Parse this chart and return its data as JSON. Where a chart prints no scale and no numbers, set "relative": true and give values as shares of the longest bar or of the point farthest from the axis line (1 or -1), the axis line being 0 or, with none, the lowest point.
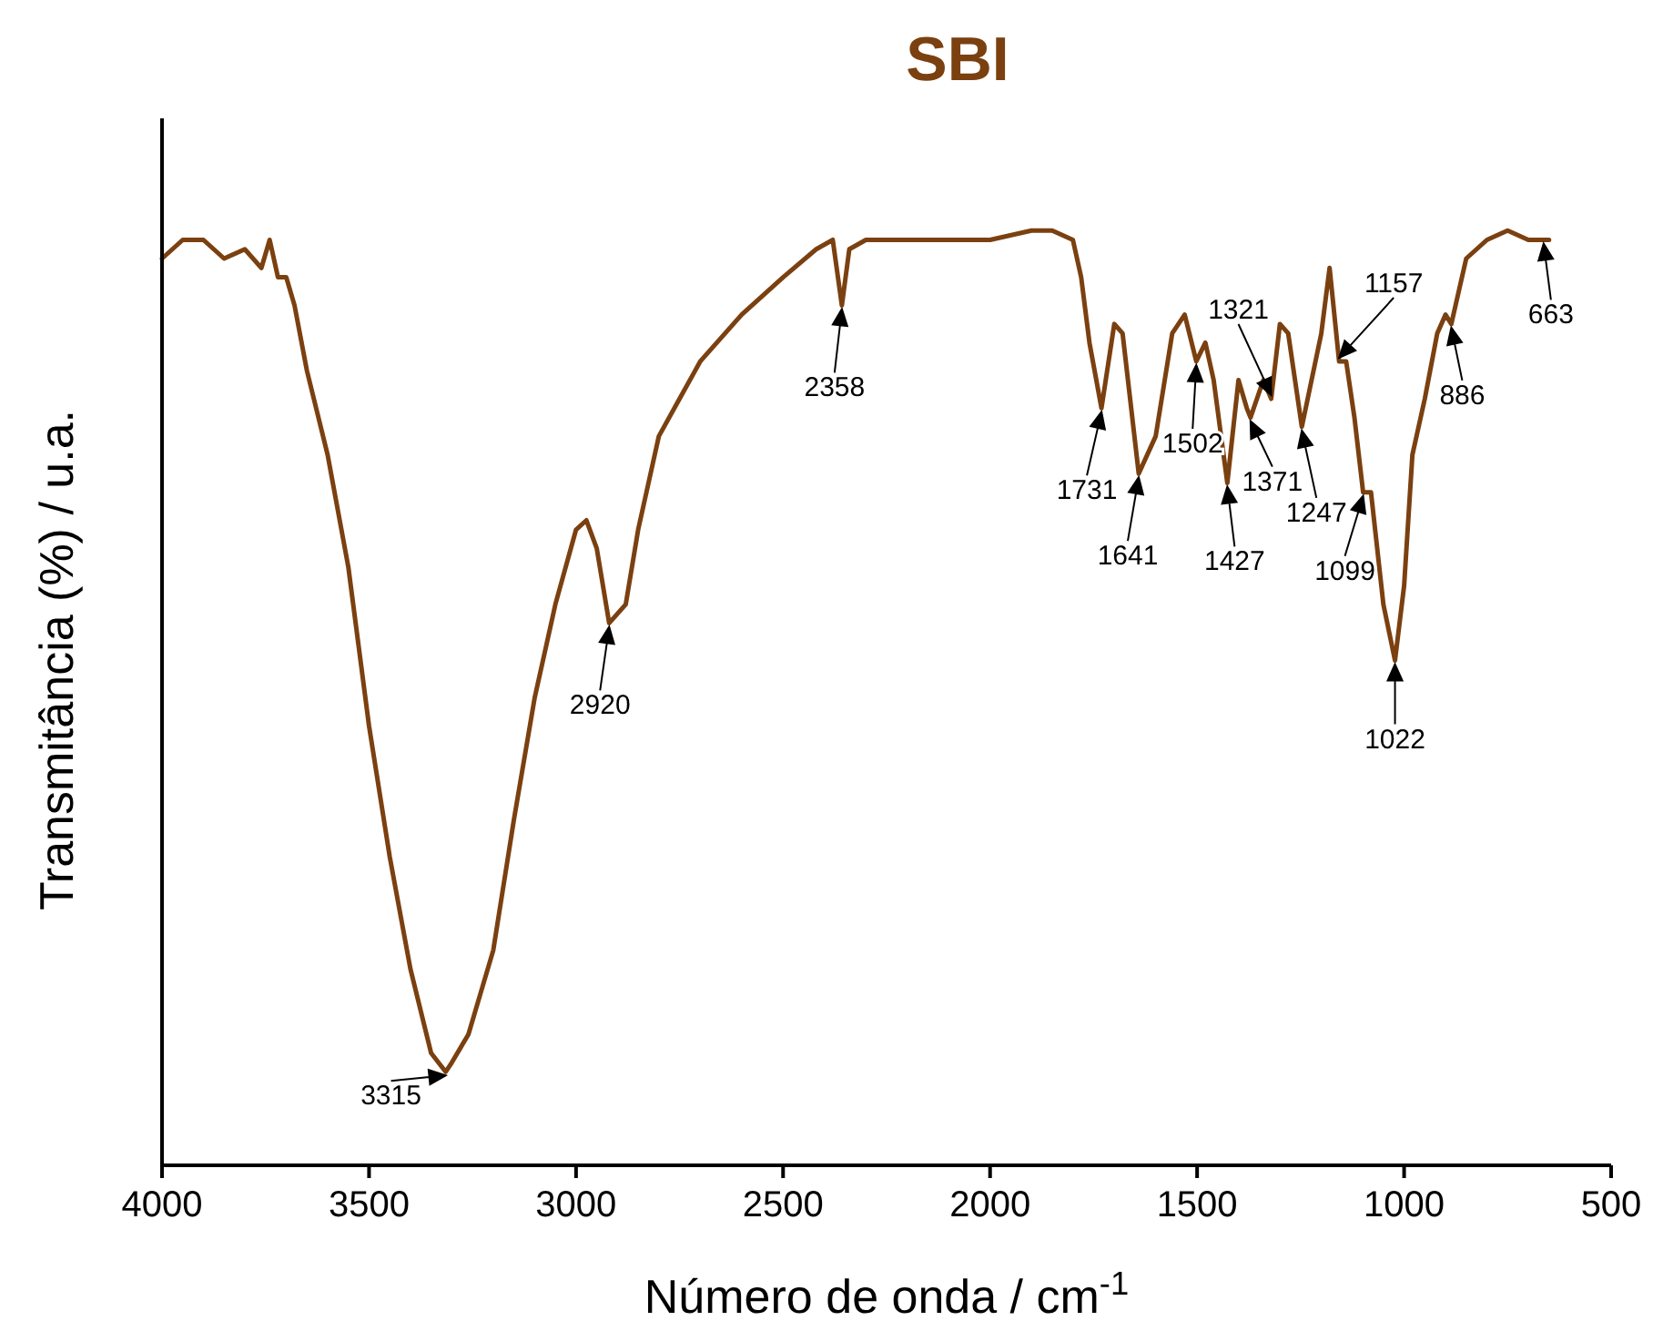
{
  "chart_data": {
    "type": "line",
    "title": "SBI",
    "xlabel": "Número de onda / cm$^{-1}$",
    "ylabel": "Transmitância (%) / u.a.",
    "relative": true,
    "xlim": [
      4000,
      500
    ],
    "xticks": [
      4000,
      3500,
      3000,
      2500,
      2000,
      1500,
      1000,
      500
    ],
    "grid": false,
    "series": [
      {
        "color": "#7b4010",
        "x": [
          4000,
          3950,
          3900,
          3850,
          3800,
          3760,
          3740,
          3720,
          3700,
          3680,
          3650,
          3600,
          3550,
          3500,
          3450,
          3400,
          3350,
          3315,
          3300,
          3260,
          3200,
          3150,
          3100,
          3050,
          3000,
          2975,
          2950,
          2920,
          2880,
          2850,
          2800,
          2750,
          2700,
          2600,
          2500,
          2420,
          2380,
          2358,
          2340,
          2300,
          2200,
          2100,
          2000,
          1900,
          1850,
          1800,
          1780,
          1760,
          1731,
          1700,
          1680,
          1641,
          1600,
          1560,
          1530,
          1502,
          1480,
          1460,
          1427,
          1400,
          1380,
          1371,
          1340,
          1321,
          1300,
          1280,
          1247,
          1200,
          1180,
          1157,
          1140,
          1120,
          1099,
          1080,
          1050,
          1022,
          1000,
          980,
          950,
          920,
          900,
          886,
          850,
          800,
          750,
          700,
          663,
          650
        ],
        "values": [
          0.97,
          0.99,
          0.99,
          0.97,
          0.98,
          0.96,
          0.99,
          0.95,
          0.95,
          0.92,
          0.85,
          0.76,
          0.64,
          0.47,
          0.33,
          0.21,
          0.12,
          0.1,
          0.11,
          0.14,
          0.23,
          0.37,
          0.5,
          0.6,
          0.68,
          0.69,
          0.66,
          0.58,
          0.6,
          0.68,
          0.78,
          0.82,
          0.86,
          0.91,
          0.95,
          0.98,
          0.99,
          0.92,
          0.98,
          0.99,
          0.99,
          0.99,
          0.99,
          1.0,
          1.0,
          0.99,
          0.95,
          0.88,
          0.81,
          0.9,
          0.89,
          0.74,
          0.78,
          0.89,
          0.91,
          0.86,
          0.88,
          0.84,
          0.73,
          0.84,
          0.81,
          0.8,
          0.84,
          0.82,
          0.9,
          0.89,
          0.79,
          0.89,
          0.96,
          0.86,
          0.86,
          0.8,
          0.72,
          0.72,
          0.6,
          0.54,
          0.62,
          0.76,
          0.82,
          0.89,
          0.91,
          0.9,
          0.97,
          0.99,
          1.0,
          0.99,
          0.99,
          0.99
        ]
      }
    ],
    "annotations": [
      {
        "text": "3315",
        "x": 3315,
        "y": 0.1
      },
      {
        "text": "2920",
        "x": 2920,
        "y": 0.58
      },
      {
        "text": "2358",
        "x": 2358,
        "y": 0.92
      },
      {
        "text": "1731",
        "x": 1731,
        "y": 0.81
      },
      {
        "text": "1641",
        "x": 1641,
        "y": 0.74
      },
      {
        "text": "1502",
        "x": 1502,
        "y": 0.86
      },
      {
        "text": "1427",
        "x": 1427,
        "y": 0.73
      },
      {
        "text": "1371",
        "x": 1371,
        "y": 0.8
      },
      {
        "text": "1321",
        "x": 1321,
        "y": 0.82
      },
      {
        "text": "1247",
        "x": 1247,
        "y": 0.79
      },
      {
        "text": "1157",
        "x": 1157,
        "y": 0.86
      },
      {
        "text": "1099",
        "x": 1099,
        "y": 0.72
      },
      {
        "text": "1022",
        "x": 1022,
        "y": 0.54
      },
      {
        "text": "886",
        "x": 886,
        "y": 0.9
      },
      {
        "text": "663",
        "x": 663,
        "y": 0.99
      }
    ]
  }
}
